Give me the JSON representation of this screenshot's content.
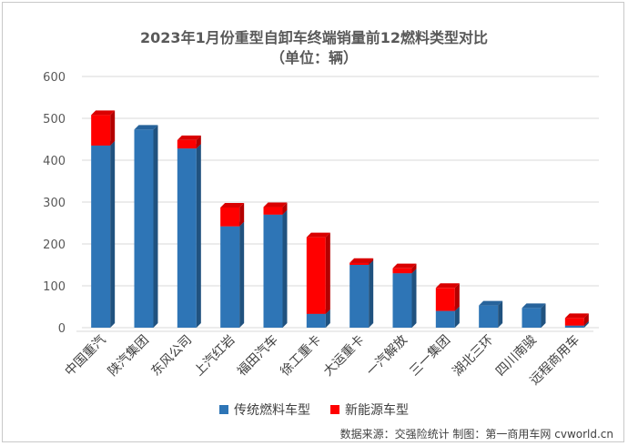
{
  "chart_data": {
    "type": "bar",
    "title": "2023年1月份重型自卸车终端销量前12燃料类型对比",
    "subtitle": "（单位：辆）",
    "categories": [
      "中国重汽",
      "陕汽集团",
      "东风公司",
      "上汽红岩",
      "福田汽车",
      "徐工重卡",
      "大运重卡",
      "一汽解放",
      "三一集团",
      "湖北三环",
      "四川南骏",
      "远程商用车"
    ],
    "series": [
      {
        "name": "传统燃料车型",
        "color": "#2e75b6",
        "values": [
          435,
          473,
          428,
          242,
          270,
          33,
          150,
          130,
          40,
          53,
          47,
          5
        ]
      },
      {
        "name": "新能源车型",
        "color": "#ff0000",
        "values": [
          73,
          0,
          20,
          45,
          18,
          183,
          5,
          12,
          55,
          0,
          0,
          18
        ]
      }
    ],
    "ylim": [
      0,
      600
    ],
    "yticks": [
      0,
      100,
      200,
      300,
      400,
      500,
      600
    ],
    "stacked": true,
    "grid": true,
    "legend_position": "bottom"
  },
  "source_text": "数据来源：交强险统计  制图：第一商用车网 cvworld.cn"
}
